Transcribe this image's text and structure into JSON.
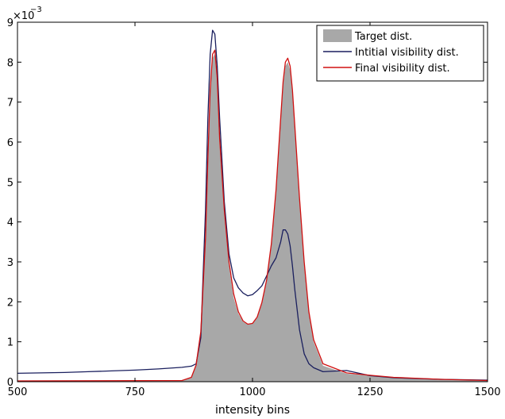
{
  "chart_data": {
    "type": "area",
    "xlabel": "intensity bins",
    "ylabel": "",
    "y_multiplier_base": "×10",
    "y_multiplier_exp": "−3",
    "xlim": [
      500,
      1500
    ],
    "ylim": [
      0,
      0.009
    ],
    "x_ticks": [
      500,
      750,
      1000,
      1250,
      1500
    ],
    "x_tick_labels": [
      "500",
      "750",
      "1000",
      "1250",
      "1500"
    ],
    "y_ticks": [
      0,
      0.001,
      0.002,
      0.003,
      0.004,
      0.005,
      0.006,
      0.007,
      0.008,
      0.009
    ],
    "y_tick_labels": [
      "0",
      "1",
      "2",
      "3",
      "4",
      "5",
      "6",
      "7",
      "8",
      "9"
    ],
    "grid": false,
    "legend_position": "top-right",
    "series": [
      {
        "name": "Target dist.",
        "kind": "filled-area",
        "color": "#a8a8a8",
        "x": [
          500,
          850,
          870,
          880,
          890,
          900,
          905,
          910,
          915,
          920,
          925,
          930,
          940,
          950,
          960,
          970,
          980,
          990,
          1000,
          1010,
          1020,
          1030,
          1040,
          1050,
          1060,
          1065,
          1070,
          1075,
          1080,
          1085,
          1090,
          1100,
          1110,
          1120,
          1130,
          1150,
          1200,
          1250,
          1300,
          1400,
          1500
        ],
        "y": [
          2e-05,
          3e-05,
          0.0001,
          0.0004,
          0.0012,
          0.0035,
          0.0055,
          0.0072,
          0.0081,
          0.0082,
          0.0075,
          0.006,
          0.0042,
          0.0029,
          0.0021,
          0.0017,
          0.0015,
          0.00143,
          0.00145,
          0.0016,
          0.00195,
          0.0025,
          0.0034,
          0.0047,
          0.0065,
          0.0074,
          0.0079,
          0.008,
          0.0078,
          0.0072,
          0.0063,
          0.0045,
          0.0029,
          0.0017,
          0.001,
          0.0004,
          0.0002,
          0.00015,
          0.0001,
          5e-05,
          2e-05
        ]
      },
      {
        "name": "Intitial visibility dist.",
        "kind": "line",
        "color": "#1a1f5e",
        "x": [
          500,
          550,
          600,
          650,
          700,
          750,
          800,
          850,
          870,
          880,
          890,
          900,
          905,
          910,
          915,
          920,
          925,
          930,
          940,
          950,
          960,
          970,
          980,
          990,
          1000,
          1010,
          1020,
          1030,
          1040,
          1050,
          1060,
          1065,
          1070,
          1075,
          1080,
          1085,
          1090,
          1100,
          1110,
          1120,
          1130,
          1150,
          1200,
          1250,
          1300,
          1400,
          1500
        ],
        "y": [
          0.00021,
          0.00022,
          0.00023,
          0.00025,
          0.00027,
          0.00029,
          0.00032,
          0.00036,
          0.00039,
          0.00045,
          0.0011,
          0.0043,
          0.0066,
          0.0082,
          0.0088,
          0.0087,
          0.0079,
          0.0066,
          0.0045,
          0.0032,
          0.0026,
          0.00235,
          0.00222,
          0.00215,
          0.00218,
          0.00228,
          0.0024,
          0.00265,
          0.0029,
          0.0031,
          0.0035,
          0.0038,
          0.0038,
          0.0037,
          0.0034,
          0.0029,
          0.0023,
          0.0013,
          0.0007,
          0.00045,
          0.00035,
          0.00025,
          0.00028,
          0.00015,
          0.0001,
          6e-05,
          4e-05
        ]
      },
      {
        "name": "Final visibility dist.",
        "kind": "line",
        "color": "#d01010",
        "x": [
          500,
          850,
          870,
          880,
          890,
          900,
          905,
          910,
          915,
          920,
          925,
          930,
          940,
          950,
          960,
          970,
          980,
          990,
          1000,
          1010,
          1020,
          1030,
          1040,
          1050,
          1060,
          1065,
          1070,
          1075,
          1080,
          1085,
          1090,
          1100,
          1110,
          1120,
          1130,
          1150,
          1200,
          1250,
          1300,
          1400,
          1500
        ],
        "y": [
          2e-05,
          3e-05,
          0.00011,
          0.00042,
          0.00125,
          0.0036,
          0.0056,
          0.0073,
          0.0082,
          0.0083,
          0.0076,
          0.0061,
          0.0043,
          0.003,
          0.0022,
          0.00175,
          0.00152,
          0.00144,
          0.00146,
          0.00162,
          0.00198,
          0.00255,
          0.00345,
          0.0048,
          0.0066,
          0.0075,
          0.008,
          0.0081,
          0.0079,
          0.0073,
          0.0064,
          0.0046,
          0.003,
          0.00175,
          0.00105,
          0.00045,
          0.00022,
          0.00016,
          0.00011,
          6e-05,
          3e-05
        ]
      }
    ]
  }
}
